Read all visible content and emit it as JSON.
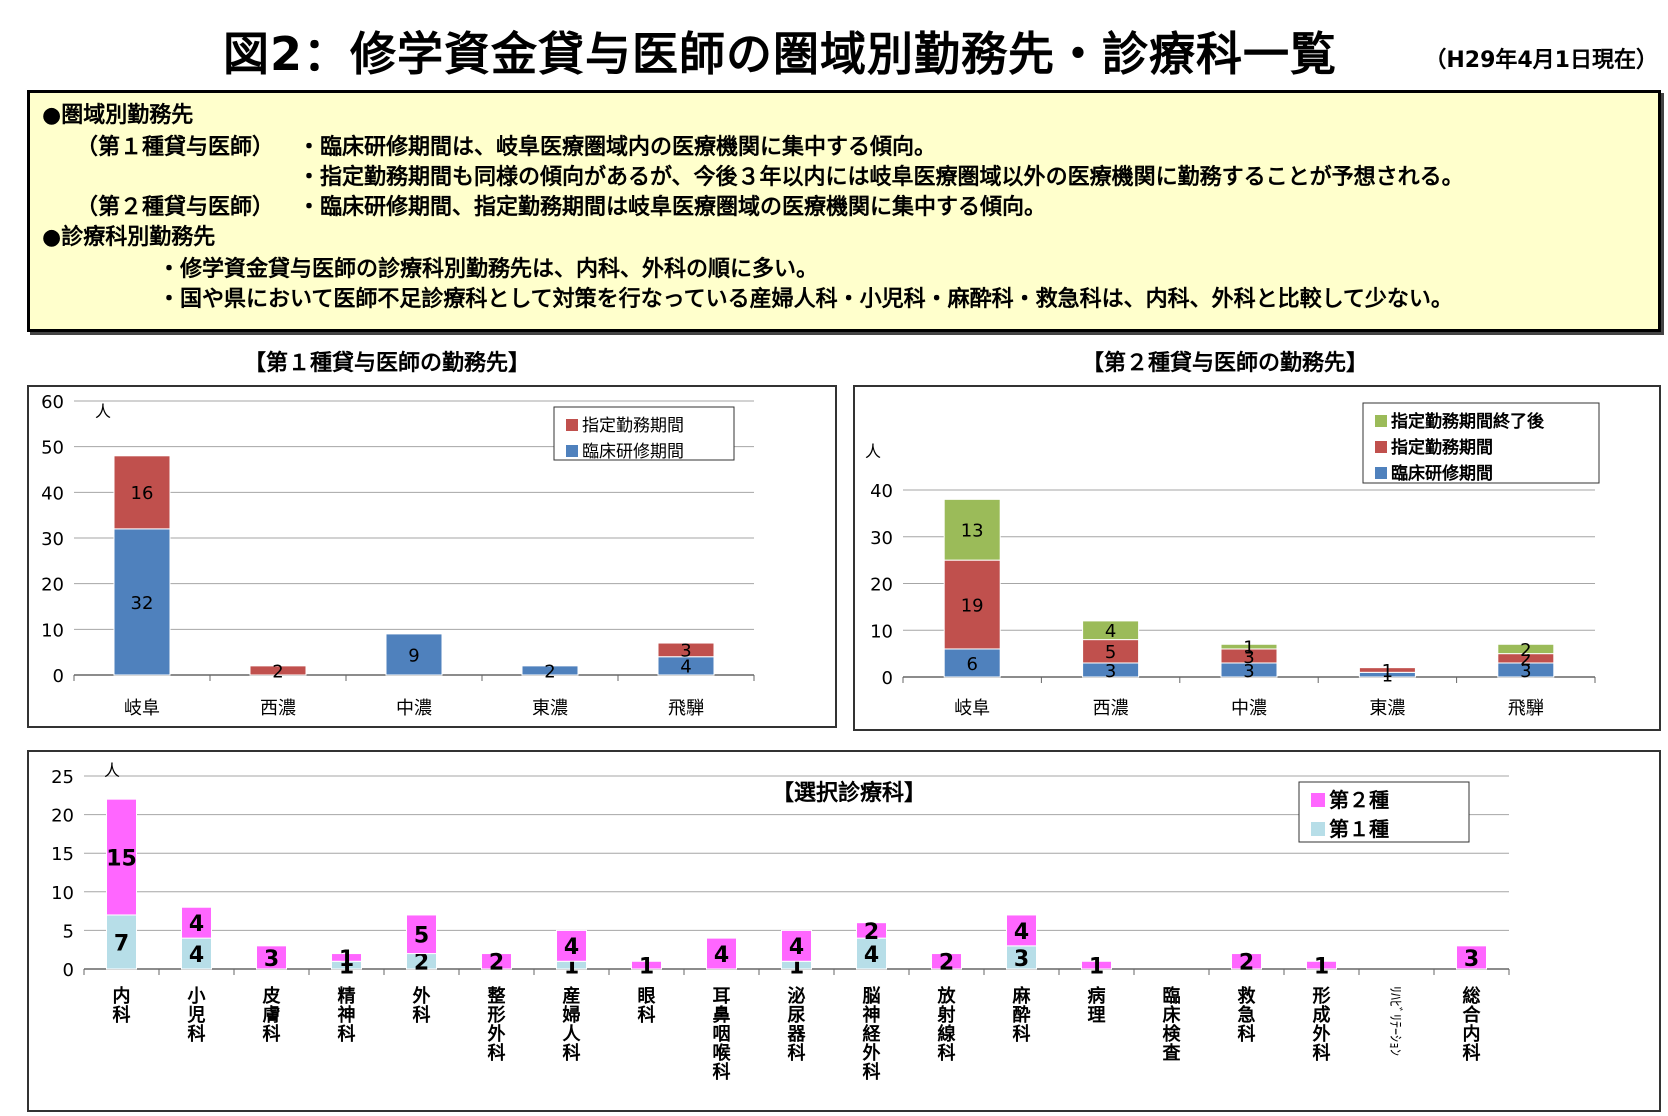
{
  "header": {
    "title": "図2：修学資金貸与医師の圏域別勤務先・診療科一覧",
    "date": "（H29年4月1日現在）"
  },
  "summary": {
    "section1_heading": "●圏域別勤務先",
    "type1_label": "（第１種貸与医師）",
    "type1_line1": "・臨床研修期間は、岐阜医療圏域内の医療機関に集中する傾向。",
    "type1_line2": "・指定勤務期間も同様の傾向があるが、今後３年以内には岐阜医療圏域以外の医療機関に勤務することが予想される。",
    "type2_label": "（第２種貸与医師）",
    "type2_line1": "・臨床研修期間、指定勤務期間は岐阜医療圏域の医療機関に集中する傾向。",
    "section2_heading": "●診療科別勤務先",
    "dept_line1": "・修学資金貸与医師の診療科別勤務先は、内科、外科の順に多い。",
    "dept_line2": "・国や県において医師不足診療科として対策を行なっている産婦人科・小児科・麻酔科・救急科は、内科、外科と比較して少ない。"
  },
  "colors": {
    "clinical": "#4f81bd",
    "designated": "#c0504d",
    "after": "#9bbb59",
    "type2": "#ff66ff",
    "type1": "#b7dee8",
    "summary_bg": "#ffffcc"
  },
  "chart_data": [
    {
      "type": "bar",
      "stacked": true,
      "title": "【第１種貸与医師の勤務先】",
      "ylabel": "人",
      "ylim": [
        0,
        60
      ],
      "yticks": [
        0,
        10,
        20,
        30,
        40,
        50,
        60
      ],
      "categories": [
        "岐阜",
        "西濃",
        "中濃",
        "東濃",
        "飛騨"
      ],
      "series": [
        {
          "name": "臨床研修期間",
          "values": [
            32,
            0,
            9,
            2,
            4
          ]
        },
        {
          "name": "指定勤務期間",
          "values": [
            16,
            2,
            0,
            0,
            3
          ]
        }
      ],
      "legend": "top-right",
      "grid": true
    },
    {
      "type": "bar",
      "stacked": true,
      "title": "【第２種貸与医師の勤務先】",
      "ylabel": "人",
      "ylim": [
        0,
        40
      ],
      "yticks": [
        0,
        10,
        20,
        30,
        40
      ],
      "categories": [
        "岐阜",
        "西濃",
        "中濃",
        "東濃",
        "飛騨"
      ],
      "series": [
        {
          "name": "臨床研修期間",
          "values": [
            6,
            3,
            3,
            1,
            3
          ]
        },
        {
          "name": "指定勤務期間",
          "values": [
            19,
            5,
            3,
            1,
            2
          ]
        },
        {
          "name": "指定勤務期間終了後",
          "values": [
            13,
            4,
            1,
            0,
            2
          ]
        }
      ],
      "legend": "top-right",
      "grid": true
    },
    {
      "type": "bar",
      "stacked": true,
      "title": "【選択診療科】",
      "ylabel": "人",
      "ylim": [
        0,
        25
      ],
      "yticks": [
        0,
        5,
        10,
        15,
        20,
        25
      ],
      "categories": [
        "内科",
        "小児科",
        "皮膚科",
        "精神科",
        "外科",
        "整形外科",
        "産婦人科",
        "眼科",
        "耳鼻咽喉科",
        "泌尿器科",
        "脳神経外科",
        "放射線科",
        "麻酔科",
        "病理",
        "臨床検査",
        "救急科",
        "形成外科",
        "ﾘﾊﾋﾞﾘﾃｰｼｮﾝ",
        "総合内科"
      ],
      "series": [
        {
          "name": "第１種",
          "values": [
            7,
            4,
            0,
            1,
            2,
            0,
            1,
            0,
            0,
            1,
            4,
            0,
            3,
            0,
            0,
            0,
            0,
            0,
            0
          ]
        },
        {
          "name": "第２種",
          "values": [
            15,
            4,
            3,
            1,
            5,
            2,
            4,
            1,
            4,
            4,
            2,
            2,
            4,
            1,
            0,
            2,
            1,
            0,
            3
          ]
        }
      ],
      "legend": "top-right",
      "grid": true
    }
  ]
}
